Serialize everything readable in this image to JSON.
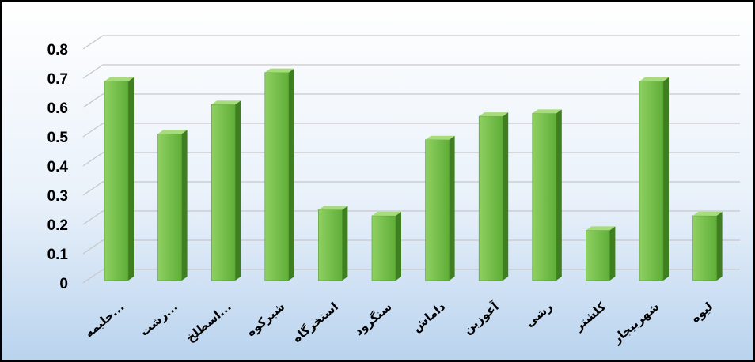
{
  "chart_data": {
    "type": "bar",
    "categories": [
      "حلیمه...",
      "رشت...",
      "اسطلخ...",
      "شیرکوه",
      "استخرگاه",
      "سنگرود",
      "داماش",
      "آغوزبن",
      "رشی",
      "کلشتر",
      "شهربیجار",
      "لیوه"
    ],
    "values": [
      0.69,
      0.51,
      0.61,
      0.72,
      0.25,
      0.23,
      0.49,
      0.57,
      0.58,
      0.18,
      0.69,
      0.23
    ],
    "color": "#6fbf45",
    "ylim": [
      0,
      0.8
    ],
    "yticks": [
      0,
      0.1,
      0.2,
      0.3,
      0.4,
      0.5,
      0.6,
      0.7,
      0.8
    ],
    "grid": true
  }
}
